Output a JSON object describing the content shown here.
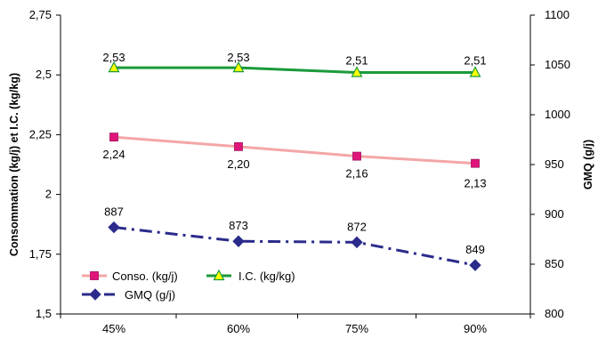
{
  "chart_data": {
    "type": "line",
    "categories": [
      "45%",
      "60%",
      "75%",
      "90%"
    ],
    "series": [
      {
        "name": "Conso. (kg/j)",
        "axis": "left",
        "values": [
          2.24,
          2.2,
          2.16,
          2.13
        ],
        "labels": [
          "2,24",
          "2,20",
          "2,16",
          "2,13"
        ],
        "color": "#f4a6a6",
        "marker": "square",
        "marker_color": "#e0157a",
        "line_style": "solid"
      },
      {
        "name": "I.C. (kg/kg)",
        "axis": "left",
        "values": [
          2.53,
          2.53,
          2.51,
          2.51
        ],
        "labels": [
          "2,53",
          "2,53",
          "2,51",
          "2,51"
        ],
        "color": "#1a9a3a",
        "marker": "triangle",
        "marker_color": "#ffff00",
        "line_style": "solid"
      },
      {
        "name": "GMQ (g/j)",
        "axis": "right",
        "values": [
          887,
          873,
          872,
          849
        ],
        "labels": [
          "887",
          "873",
          "872",
          "849"
        ],
        "color": "#2b2b8c",
        "marker": "diamond",
        "marker_color": "#2b2b8c",
        "line_style": "dash-dot"
      }
    ],
    "ylabel": "Consommation (kg/j) et I.C. (kg/kg)",
    "ylabel_right": "GMQ (g/j)",
    "ylim": [
      1.5,
      2.75
    ],
    "ylim_right": [
      800,
      1100
    ],
    "yticks": [
      "1,5",
      "1,75",
      "2",
      "2,25",
      "2,5",
      "2,75"
    ],
    "yticks_right": [
      "800",
      "850",
      "900",
      "950",
      "1000",
      "1050",
      "1100"
    ],
    "grid": false,
    "legend_position": "bottom-left"
  }
}
